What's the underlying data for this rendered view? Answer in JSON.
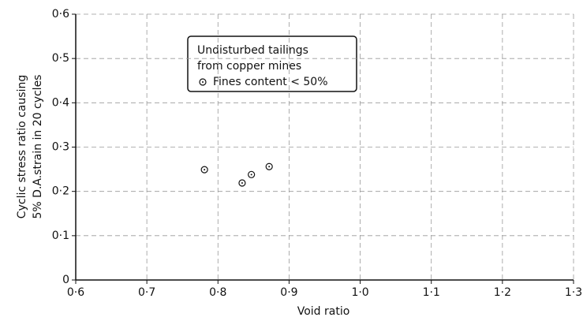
{
  "chart_data": {
    "type": "scatter",
    "xlabel": "Void   ratio",
    "ylabel": [
      "Cyclic stress ratio causing",
      "5% D.A.strain in 20 cycles"
    ],
    "annotation": [
      "Undisturbed tailings",
      "from copper mines"
    ],
    "series": [
      {
        "name": "Fines content < 50%",
        "color": "#111111",
        "x": [
          0.781,
          0.834,
          0.847,
          0.872
        ],
        "values": [
          0.249,
          0.219,
          0.238,
          0.256
        ]
      }
    ],
    "xlim": [
      0.6,
      1.3
    ],
    "xticks": [
      {
        "value": 0.6,
        "label": "0·6"
      },
      {
        "value": 0.7,
        "label": "0·7"
      },
      {
        "value": 0.8,
        "label": "0·8"
      },
      {
        "value": 0.9,
        "label": "0·9"
      },
      {
        "value": 1.0,
        "label": "1·0"
      },
      {
        "value": 1.1,
        "label": "1·1"
      },
      {
        "value": 1.2,
        "label": "1·2"
      },
      {
        "value": 1.3,
        "label": "1·3"
      }
    ],
    "ylim": [
      0,
      0.6
    ],
    "yticks": [
      0,
      {
        "value": 0.1,
        "label": "0·1"
      },
      {
        "value": 0.2,
        "label": "0·2"
      },
      {
        "value": 0.3,
        "label": "0·3"
      },
      {
        "value": 0.4,
        "label": "0·4"
      },
      {
        "value": 0.5,
        "label": "0·5"
      },
      {
        "value": 0.6,
        "label": "0·6"
      }
    ],
    "grid": true
  }
}
